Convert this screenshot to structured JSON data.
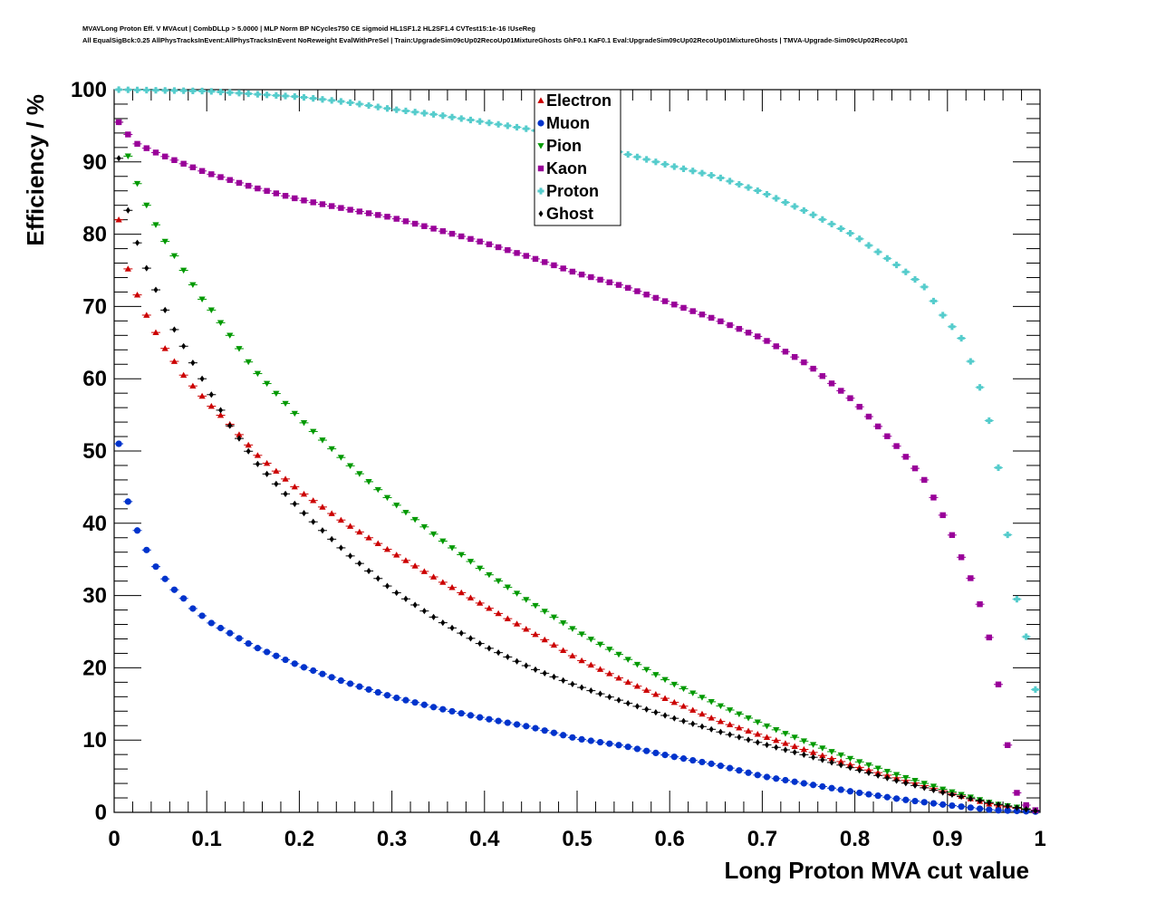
{
  "header": {
    "line1": "MVAVLong Proton Eff. V MVAcut | CombDLLp > 5.0000 | MLP Norm BP NCycles750 CE sigmoid HL1SF1.2 HL2SF1.4 CVTest15:1e-16 !UseReg",
    "line2": "All EqualSigBck:0.25 AllPhysTracksInEvent:AllPhysTracksInEvent NoReweight EvalWithPreSel | Train:UpgradeSim09cUp02RecoUp01MixtureGhosts GhF0.1 KaF0.1 Eval:UpgradeSim09cUp02RecoUp01MixtureGhosts | TMVA-Upgrade-Sim09cUp02RecoUp01"
  },
  "chart_data": {
    "type": "scatter",
    "xlabel": "Long Proton MVA cut value",
    "ylabel": "Efficiency / %",
    "xlim": [
      0,
      1
    ],
    "ylim": [
      0,
      100
    ],
    "xticks": [
      "0",
      "0.1",
      "0.2",
      "0.3",
      "0.4",
      "0.5",
      "0.6",
      "0.7",
      "0.8",
      "0.9",
      "1"
    ],
    "yticks": [
      "0",
      "10",
      "20",
      "30",
      "40",
      "50",
      "60",
      "70",
      "80",
      "90",
      "100"
    ],
    "grid": false,
    "legend_position": "top-center",
    "x_points": {
      "start": 0.005,
      "step": 0.01,
      "count": 100
    },
    "series": [
      {
        "name": "Electron",
        "color": "#cc0000",
        "marker": "triangle-up",
        "anchors": [
          [
            0.005,
            82
          ],
          [
            0.015,
            75.2
          ],
          [
            0.025,
            71.6
          ],
          [
            0.035,
            68.8
          ],
          [
            0.045,
            66.4
          ],
          [
            0.055,
            64.2
          ],
          [
            0.065,
            62.4
          ],
          [
            0.075,
            60.5
          ],
          [
            0.085,
            59
          ],
          [
            0.095,
            57.6
          ],
          [
            0.105,
            56.2
          ],
          [
            0.125,
            53.7
          ],
          [
            0.155,
            49.4
          ],
          [
            0.2,
            44.5
          ],
          [
            0.25,
            40
          ],
          [
            0.3,
            36
          ],
          [
            0.35,
            32.2
          ],
          [
            0.4,
            28.6
          ],
          [
            0.45,
            25
          ],
          [
            0.5,
            21.3
          ],
          [
            0.55,
            18.3
          ],
          [
            0.6,
            15.5
          ],
          [
            0.65,
            12.8
          ],
          [
            0.7,
            10.6
          ],
          [
            0.75,
            8.5
          ],
          [
            0.8,
            6.4
          ],
          [
            0.85,
            4.6
          ],
          [
            0.9,
            2.8
          ],
          [
            0.95,
            1.0
          ],
          [
            0.995,
            0.2
          ]
        ]
      },
      {
        "name": "Muon",
        "color": "#0033cc",
        "marker": "circle",
        "anchors": [
          [
            0.005,
            51
          ],
          [
            0.015,
            43
          ],
          [
            0.025,
            39
          ],
          [
            0.035,
            36.3
          ],
          [
            0.045,
            34
          ],
          [
            0.055,
            32.3
          ],
          [
            0.065,
            30.8
          ],
          [
            0.075,
            29.6
          ],
          [
            0.085,
            28.2
          ],
          [
            0.095,
            27.2
          ],
          [
            0.105,
            26.2
          ],
          [
            0.125,
            24.8
          ],
          [
            0.15,
            23.0
          ],
          [
            0.2,
            20.3
          ],
          [
            0.25,
            18.0
          ],
          [
            0.3,
            16.0
          ],
          [
            0.35,
            14.4
          ],
          [
            0.4,
            13.0
          ],
          [
            0.45,
            11.8
          ],
          [
            0.5,
            10.2
          ],
          [
            0.55,
            9.2
          ],
          [
            0.6,
            7.8
          ],
          [
            0.65,
            6.6
          ],
          [
            0.7,
            5.0
          ],
          [
            0.75,
            3.9
          ],
          [
            0.8,
            2.8
          ],
          [
            0.85,
            1.8
          ],
          [
            0.9,
            1.0
          ],
          [
            0.95,
            0.3
          ],
          [
            0.995,
            0.1
          ]
        ]
      },
      {
        "name": "Pion",
        "color": "#009900",
        "marker": "triangle-down",
        "anchors": [
          [
            0.005,
            95.5
          ],
          [
            0.015,
            90.8
          ],
          [
            0.025,
            87
          ],
          [
            0.035,
            84
          ],
          [
            0.045,
            81.3
          ],
          [
            0.055,
            79
          ],
          [
            0.065,
            77
          ],
          [
            0.075,
            75
          ],
          [
            0.085,
            73
          ],
          [
            0.095,
            71
          ],
          [
            0.105,
            69.5
          ],
          [
            0.125,
            66
          ],
          [
            0.15,
            61.4
          ],
          [
            0.2,
            54.5
          ],
          [
            0.25,
            48.5
          ],
          [
            0.3,
            43
          ],
          [
            0.35,
            38
          ],
          [
            0.4,
            33.3
          ],
          [
            0.45,
            29
          ],
          [
            0.5,
            25
          ],
          [
            0.55,
            21.5
          ],
          [
            0.6,
            18
          ],
          [
            0.65,
            15.0
          ],
          [
            0.7,
            12.2
          ],
          [
            0.75,
            9.6
          ],
          [
            0.8,
            7.2
          ],
          [
            0.85,
            5.0
          ],
          [
            0.9,
            3.0
          ],
          [
            0.95,
            1.2
          ],
          [
            0.995,
            0.3
          ]
        ]
      },
      {
        "name": "Kaon",
        "color": "#990099",
        "marker": "square",
        "anchors": [
          [
            0.005,
            95.5
          ],
          [
            0.015,
            93.8
          ],
          [
            0.025,
            92.5
          ],
          [
            0.05,
            91
          ],
          [
            0.1,
            88.5
          ],
          [
            0.15,
            86.5
          ],
          [
            0.2,
            84.8
          ],
          [
            0.25,
            83.5
          ],
          [
            0.3,
            82.3
          ],
          [
            0.35,
            80.6
          ],
          [
            0.4,
            78.8
          ],
          [
            0.45,
            76.8
          ],
          [
            0.5,
            74.6
          ],
          [
            0.55,
            72.8
          ],
          [
            0.6,
            70.5
          ],
          [
            0.65,
            68.2
          ],
          [
            0.7,
            65.6
          ],
          [
            0.75,
            61.9
          ],
          [
            0.8,
            56.8
          ],
          [
            0.85,
            50
          ],
          [
            0.875,
            46
          ],
          [
            0.9,
            39.9
          ],
          [
            0.915,
            35.3
          ],
          [
            0.925,
            32.4
          ],
          [
            0.935,
            28.8
          ],
          [
            0.945,
            24.2
          ],
          [
            0.955,
            17.7
          ],
          [
            0.965,
            9.3
          ],
          [
            0.975,
            2.7
          ],
          [
            0.985,
            1.0
          ],
          [
            0.995,
            0.3
          ]
        ]
      },
      {
        "name": "Proton",
        "color": "#55cccc",
        "marker": "cross",
        "anchors": [
          [
            0.005,
            100
          ],
          [
            0.1,
            99.8
          ],
          [
            0.2,
            99.0
          ],
          [
            0.25,
            98.3
          ],
          [
            0.3,
            97.3
          ],
          [
            0.35,
            96.5
          ],
          [
            0.4,
            95.5
          ],
          [
            0.45,
            94.5
          ],
          [
            0.5,
            93
          ],
          [
            0.55,
            91.2
          ],
          [
            0.6,
            89.5
          ],
          [
            0.65,
            88
          ],
          [
            0.7,
            85.8
          ],
          [
            0.75,
            83
          ],
          [
            0.8,
            79.8
          ],
          [
            0.85,
            75.3
          ],
          [
            0.875,
            72.7
          ],
          [
            0.895,
            68.8
          ],
          [
            0.915,
            65.6
          ],
          [
            0.925,
            62.4
          ],
          [
            0.935,
            58.8
          ],
          [
            0.945,
            54.2
          ],
          [
            0.955,
            47.7
          ],
          [
            0.965,
            38.4
          ],
          [
            0.975,
            29.5
          ],
          [
            0.985,
            24.3
          ],
          [
            0.995,
            17
          ]
        ]
      },
      {
        "name": "Ghost",
        "color": "#000000",
        "marker": "diamond",
        "anchors": [
          [
            0.005,
            90.5
          ],
          [
            0.015,
            83.3
          ],
          [
            0.025,
            78.8
          ],
          [
            0.035,
            75.3
          ],
          [
            0.045,
            72.3
          ],
          [
            0.055,
            69.5
          ],
          [
            0.065,
            66.8
          ],
          [
            0.075,
            64.5
          ],
          [
            0.085,
            62.2
          ],
          [
            0.095,
            60
          ],
          [
            0.105,
            57.8
          ],
          [
            0.125,
            53.5
          ],
          [
            0.155,
            48.2
          ],
          [
            0.2,
            42
          ],
          [
            0.25,
            36
          ],
          [
            0.3,
            30.8
          ],
          [
            0.35,
            26.6
          ],
          [
            0.4,
            23
          ],
          [
            0.45,
            20
          ],
          [
            0.5,
            17.5
          ],
          [
            0.55,
            15.3
          ],
          [
            0.6,
            13.2
          ],
          [
            0.65,
            11.3
          ],
          [
            0.7,
            9.5
          ],
          [
            0.75,
            7.8
          ],
          [
            0.8,
            6.0
          ],
          [
            0.85,
            4.2
          ],
          [
            0.9,
            2.6
          ],
          [
            0.95,
            1.2
          ],
          [
            0.995,
            0.2
          ]
        ]
      }
    ]
  }
}
